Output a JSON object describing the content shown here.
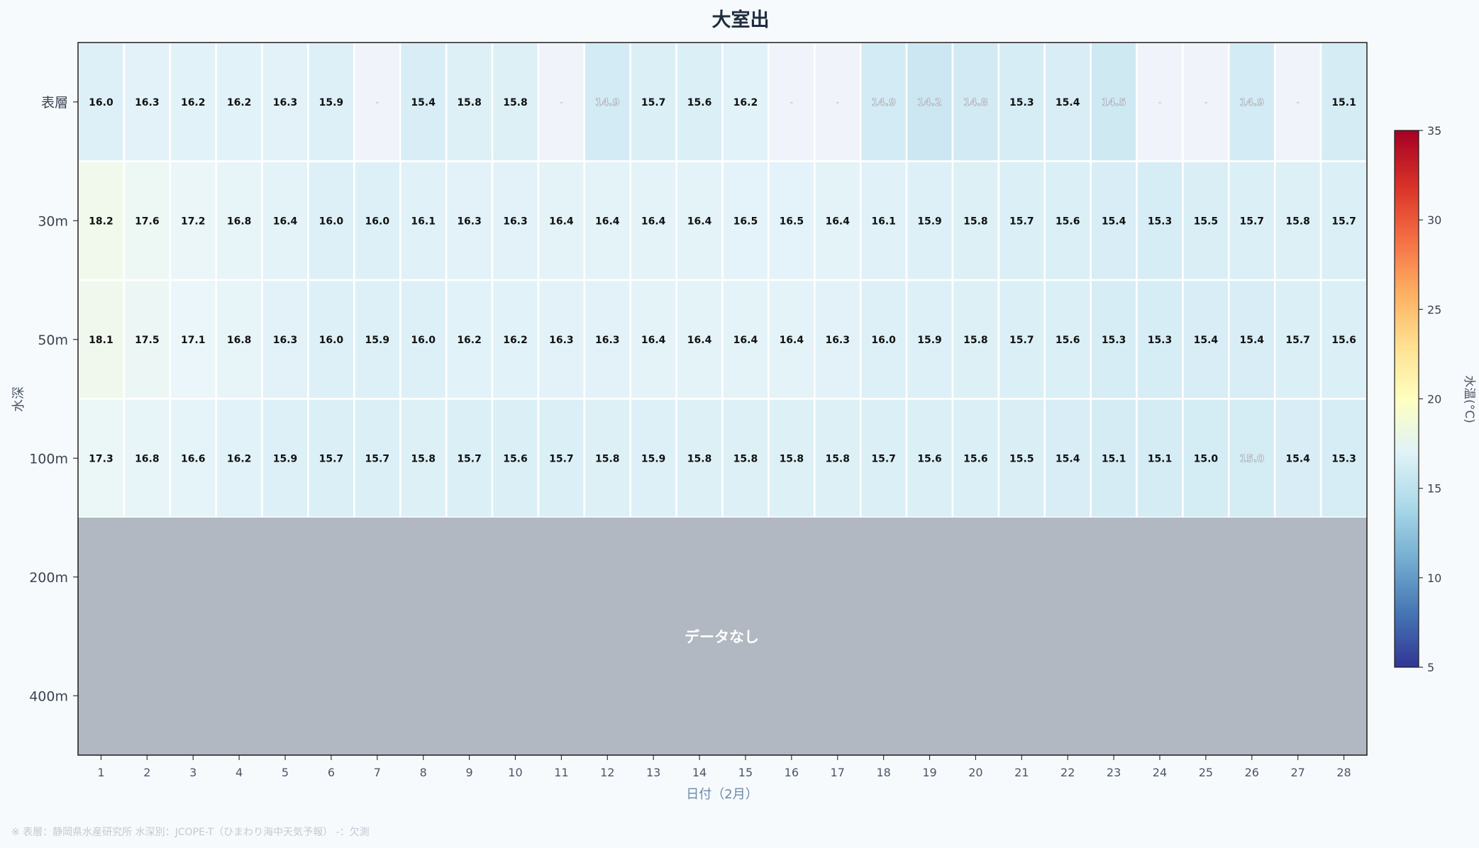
{
  "chart_data": {
    "type": "heatmap",
    "title": "大室出",
    "xlabel": "日付（2月）",
    "ylabel": "水深",
    "x": [
      "1",
      "2",
      "3",
      "4",
      "5",
      "6",
      "7",
      "8",
      "9",
      "10",
      "11",
      "12",
      "13",
      "14",
      "15",
      "16",
      "17",
      "18",
      "19",
      "20",
      "21",
      "22",
      "23",
      "24",
      "25",
      "26",
      "27",
      "28"
    ],
    "y": [
      "表層",
      "30m",
      "50m",
      "100m",
      "200m",
      "400m"
    ],
    "missing_label": "-",
    "values": [
      [
        16.0,
        16.3,
        16.2,
        16.2,
        16.3,
        15.9,
        null,
        15.4,
        15.8,
        15.8,
        null,
        14.9,
        15.7,
        15.6,
        16.2,
        null,
        null,
        14.9,
        14.2,
        14.8,
        15.3,
        15.4,
        14.5,
        null,
        null,
        14.9,
        null,
        15.1
      ],
      [
        18.2,
        17.6,
        17.2,
        16.8,
        16.4,
        16.0,
        16.0,
        16.1,
        16.3,
        16.3,
        16.4,
        16.4,
        16.4,
        16.4,
        16.5,
        16.5,
        16.4,
        16.1,
        15.9,
        15.8,
        15.7,
        15.6,
        15.4,
        15.3,
        15.5,
        15.7,
        15.8,
        15.7
      ],
      [
        18.1,
        17.5,
        17.1,
        16.8,
        16.3,
        16.0,
        15.9,
        16.0,
        16.2,
        16.2,
        16.3,
        16.3,
        16.4,
        16.4,
        16.4,
        16.4,
        16.3,
        16.0,
        15.9,
        15.8,
        15.7,
        15.6,
        15.3,
        15.3,
        15.4,
        15.4,
        15.7,
        15.6
      ],
      [
        17.3,
        16.8,
        16.6,
        16.2,
        15.9,
        15.7,
        15.7,
        15.8,
        15.7,
        15.6,
        15.7,
        15.8,
        15.9,
        15.8,
        15.8,
        15.8,
        15.8,
        15.7,
        15.6,
        15.6,
        15.5,
        15.4,
        15.1,
        15.1,
        15.0,
        15.0,
        15.4,
        15.3
      ]
    ],
    "outlined_cells_surface_days": [
      "12",
      "18",
      "19",
      "20",
      "23",
      "26"
    ],
    "outlined_cells_100m_days": [
      "26"
    ],
    "no_data_rows": [
      "200m",
      "400m"
    ],
    "no_data_label": "データなし",
    "colorbar": {
      "label": "水温(°C)",
      "min": 5,
      "max": 35,
      "ticks": [
        "5",
        "10",
        "15",
        "20",
        "25",
        "30",
        "35"
      ],
      "colormap": "RdYlBu_r"
    },
    "grid": false,
    "legend": "right"
  },
  "colors": {
    "background": "#f7fafd",
    "no_data": "#b1b8c1",
    "missing_cell": "#f0f4fa",
    "cell_border": "#ffffff",
    "title": "#1f2d3d",
    "xlabel": "#6a8aa8"
  },
  "footnote": "※ 表層：静岡県水産研究所  水深別：JCOPE-T（ひまわり海中天気予報）  -：欠測"
}
